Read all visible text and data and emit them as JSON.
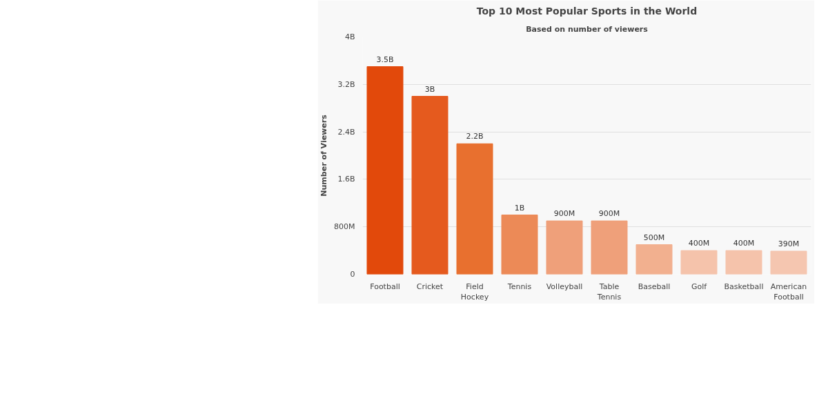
{
  "chart_data": {
    "type": "bar",
    "title": "Top 10 Most Popular Sports in the World",
    "subtitle": "Based on number of viewers",
    "ylabel": "Number of Viewers",
    "categories": [
      "Football",
      "Cricket",
      "Field Hockey",
      "Tennis",
      "Volleyball",
      "Table Tennis",
      "Baseball",
      "Golf",
      "Basketball",
      "American Football"
    ],
    "values": [
      3500000000,
      3000000000,
      2200000000,
      1000000000,
      900000000,
      900000000,
      500000000,
      400000000,
      400000000,
      390000000
    ],
    "colors": [
      "#e2490b",
      "#e55a1e",
      "#e8702f",
      "#ec8a57",
      "#efa07a",
      "#efa07a",
      "#f2b08f",
      "#f5c3ab",
      "#f5c3ab",
      "#f5c6b0"
    ],
    "value_labels": [
      "3.5B",
      "3B",
      "2.2B",
      "1B",
      "900M",
      "900M",
      "500M",
      "400M",
      "400M",
      "390M"
    ],
    "ylim": [
      0,
      4000000000
    ],
    "yticks": [
      0,
      {
        "value": 800000000,
        "label": "800M"
      },
      {
        "value": 1600000000,
        "label": "1.6B"
      },
      {
        "value": 2400000000,
        "label": "2.4B"
      },
      {
        "value": 3200000000,
        "label": "3.2B"
      },
      {
        "value": 4000000000,
        "label": "4B"
      }
    ],
    "grid": "y"
  }
}
